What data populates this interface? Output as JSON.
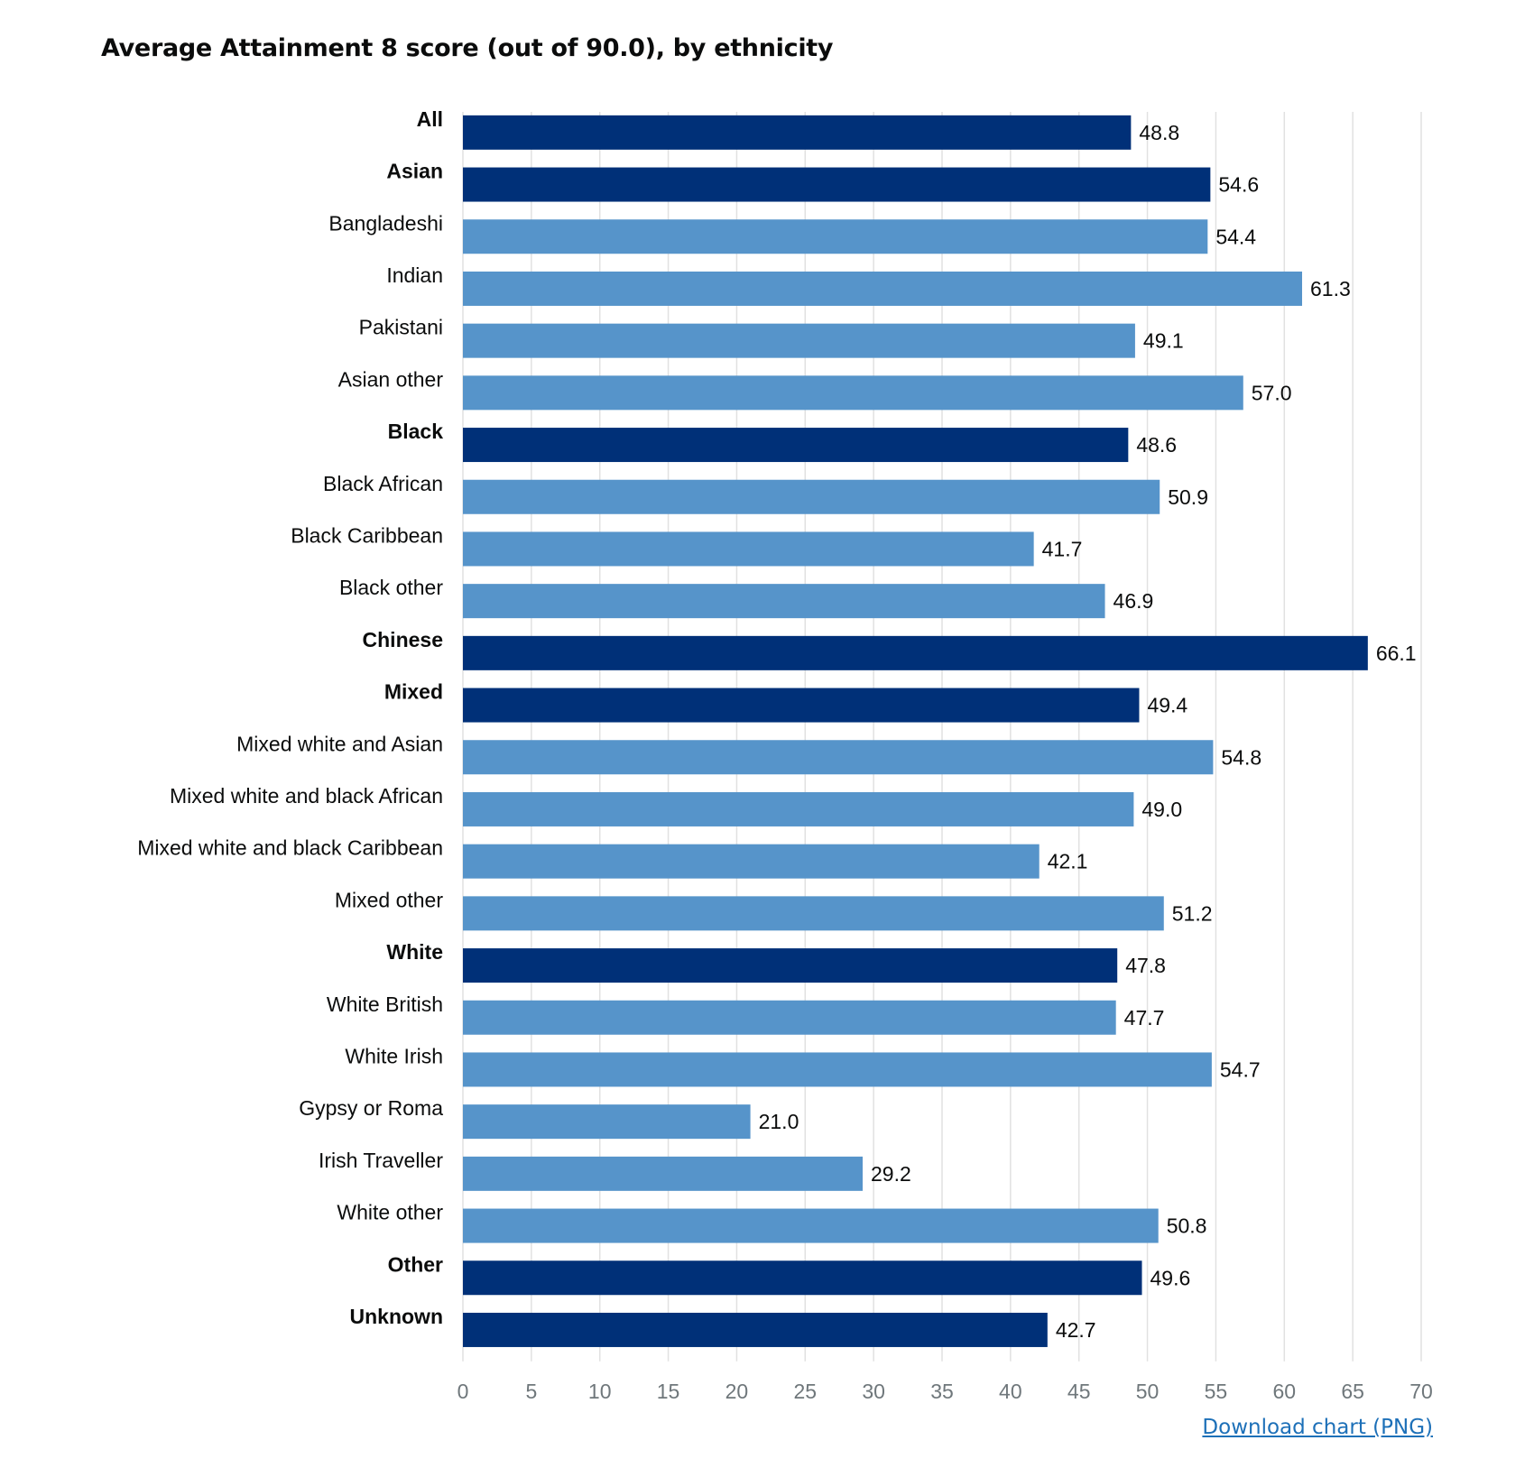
{
  "chart_data": {
    "type": "bar",
    "orientation": "horizontal",
    "title": "Average Attainment 8 score (out of 90.0), by ethnicity",
    "xlabel": "",
    "ylabel": "",
    "xlim": [
      0,
      70
    ],
    "x_ticks": [
      0,
      5,
      10,
      15,
      20,
      25,
      30,
      35,
      40,
      45,
      50,
      55,
      60,
      65,
      70
    ],
    "grid": true,
    "colors": {
      "group": "#003078",
      "subgroup": "#5694ca"
    },
    "categories": [
      "All",
      "Asian",
      "Bangladeshi",
      "Indian",
      "Pakistani",
      "Asian other",
      "Black",
      "Black African",
      "Black Caribbean",
      "Black other",
      "Chinese",
      "Mixed",
      "Mixed white and Asian",
      "Mixed white and black African",
      "Mixed white and black Caribbean",
      "Mixed other",
      "White",
      "White British",
      "White Irish",
      "Gypsy or Roma",
      "Irish Traveller",
      "White other",
      "Other",
      "Unknown"
    ],
    "values": [
      48.8,
      54.6,
      54.4,
      61.3,
      49.1,
      57.0,
      48.6,
      50.9,
      41.7,
      46.9,
      66.1,
      49.4,
      54.8,
      49.0,
      42.1,
      51.2,
      47.8,
      47.7,
      54.7,
      21.0,
      29.2,
      50.8,
      49.6,
      42.7
    ],
    "value_labels": [
      "48.8",
      "54.6",
      "54.4",
      "61.3",
      "49.1",
      "57.0",
      "48.6",
      "50.9",
      "41.7",
      "46.9",
      "66.1",
      "49.4",
      "54.8",
      "49.0",
      "42.1",
      "51.2",
      "47.8",
      "47.7",
      "54.7",
      "21.0",
      "29.2",
      "50.8",
      "49.6",
      "42.7"
    ],
    "is_group": [
      true,
      true,
      false,
      false,
      false,
      false,
      true,
      false,
      false,
      false,
      true,
      true,
      false,
      false,
      false,
      false,
      true,
      false,
      false,
      false,
      false,
      false,
      true,
      true
    ]
  },
  "download": {
    "label": "Download chart (PNG)"
  }
}
